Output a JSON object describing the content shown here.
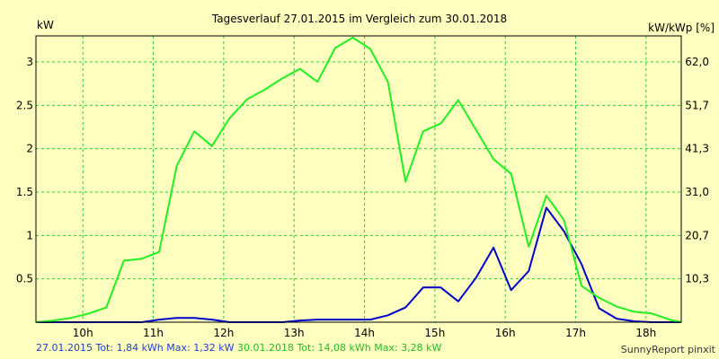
{
  "chart_data": {
    "type": "line",
    "title": "Tagesverlauf 27.01.2015 im Vergleich zum 30.01.2018",
    "ylabel_left": "kW",
    "ylabel_right": "kW/kWp [%]",
    "x_ticks": [
      "10h",
      "11h",
      "12h",
      "13h",
      "14h",
      "15h",
      "16h",
      "17h",
      "18h"
    ],
    "y_ticks_left": [
      "0.5",
      "1",
      "1.5",
      "2",
      "2.5",
      "3"
    ],
    "y_ticks_right": [
      "10,3",
      "20,7",
      "31,0",
      "41,3",
      "51,7",
      "62,0"
    ],
    "xlim": [
      9.333,
      18.5
    ],
    "ylim": [
      0,
      3.3
    ],
    "grid": true,
    "series": [
      {
        "name": "27.01.2015",
        "color": "#0000cc",
        "x": [
          9.333,
          10.333,
          10.583,
          10.833,
          11.083,
          11.333,
          11.583,
          11.833,
          12.083,
          12.333,
          12.583,
          12.833,
          13.083,
          13.333,
          13.583,
          13.833,
          14.083,
          14.333,
          14.583,
          14.833,
          15.083,
          15.333,
          15.583,
          15.833,
          16.083,
          16.333,
          16.583,
          16.833,
          17.083,
          17.333,
          17.583,
          17.833,
          18.083,
          18.333,
          18.5
        ],
        "y": [
          0,
          0,
          0,
          0,
          0.03,
          0.05,
          0.05,
          0.03,
          0,
          0,
          0,
          0,
          0.02,
          0.03,
          0.03,
          0.03,
          0.03,
          0.08,
          0.17,
          0.4,
          0.4,
          0.24,
          0.51,
          0.86,
          0.37,
          0.59,
          1.32,
          1.05,
          0.67,
          0.16,
          0.04,
          0.01,
          0,
          0,
          0
        ]
      },
      {
        "name": "30.01.2018",
        "color": "#22ee22",
        "x": [
          9.333,
          9.583,
          9.833,
          10.083,
          10.333,
          10.583,
          10.833,
          11.083,
          11.333,
          11.583,
          11.833,
          12.083,
          12.333,
          12.583,
          12.833,
          13.083,
          13.333,
          13.583,
          13.833,
          14.083,
          14.333,
          14.583,
          14.833,
          15.083,
          15.333,
          15.583,
          15.833,
          16.083,
          16.333,
          16.583,
          16.833,
          17.083,
          17.333,
          17.583,
          17.833,
          18.083,
          18.333,
          18.5
        ],
        "y": [
          0,
          0.02,
          0.05,
          0.1,
          0.17,
          0.71,
          0.73,
          0.81,
          1.8,
          2.2,
          2.03,
          2.35,
          2.57,
          2.68,
          2.81,
          2.92,
          2.77,
          3.16,
          3.28,
          3.15,
          2.77,
          1.62,
          2.2,
          2.29,
          2.56,
          2.22,
          1.88,
          1.71,
          0.87,
          1.46,
          1.18,
          0.42,
          0.28,
          0.18,
          0.12,
          0.1,
          0.03,
          0
        ]
      }
    ]
  },
  "footer": {
    "s2015": "27.01.2015 Tot: 1,84 kWh Max: 1,32 kW",
    "s2018": "30.01.2018 Tot: 14,08 kWh Max: 3,28 kW"
  },
  "brand": "SunnyReport pinxit"
}
